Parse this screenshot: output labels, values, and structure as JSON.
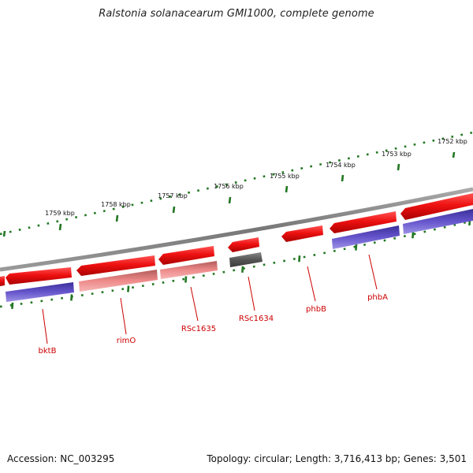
{
  "title": "Ralstonia solanacearum GMI1000, complete genome",
  "footer": {
    "accession": "Accession: NC_003295",
    "summary": "Topology: circular; Length: 3,716,413 bp; Genes: 3,501"
  },
  "colors": {
    "cds_forward": "#ee1111",
    "cds_dimmed": "#ea8a8a",
    "cds_hypothetical": "#555555",
    "gene_track": "#6655cc",
    "backbone": "#777777",
    "ticks": "#227722",
    "label": "#cc0000"
  },
  "scale_ticks": [
    {
      "label": "1752 kbp"
    },
    {
      "label": "1753 kbp"
    },
    {
      "label": "1754 kbp"
    },
    {
      "label": "1755 kbp"
    },
    {
      "label": "1756 kbp"
    },
    {
      "label": "1757 kbp"
    },
    {
      "label": "1758 kbp"
    },
    {
      "label": "1759 kbp"
    }
  ],
  "gene_labels": [
    {
      "name": "bktB"
    },
    {
      "name": "rimO"
    },
    {
      "name": "RSc1635"
    },
    {
      "name": "RSc1634"
    },
    {
      "name": "phbB"
    },
    {
      "name": "phbA"
    }
  ]
}
